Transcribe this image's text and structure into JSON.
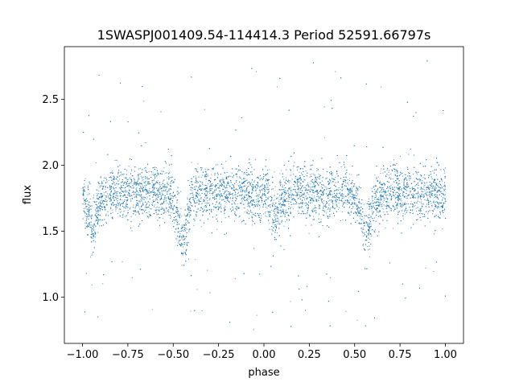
{
  "chart_data": {
    "type": "scatter",
    "title": "1SWASPJ001409.54-114414.3 Period 52591.66797s",
    "xlabel": "phase",
    "ylabel": "flux",
    "xlim": [
      -1.1,
      1.1
    ],
    "ylim": [
      0.65,
      2.9
    ],
    "x_ticks": [
      -1.0,
      -0.75,
      -0.5,
      -0.25,
      0.0,
      0.25,
      0.5,
      0.75,
      1.0
    ],
    "x_tick_labels": [
      "−1.00",
      "−0.75",
      "−0.50",
      "−0.25",
      "0.00",
      "0.25",
      "0.50",
      "0.75",
      "1.00"
    ],
    "y_ticks": [
      1.0,
      1.5,
      2.0,
      2.5
    ],
    "y_tick_labels": [
      "1.0",
      "1.5",
      "2.0",
      "2.5"
    ],
    "grid": false,
    "marker_color": "#1f77b4",
    "series": [
      {
        "profile": {
          "x": [
            -1.0,
            -0.98,
            -0.96,
            -0.95,
            -0.94,
            -0.92,
            -0.9,
            -0.85,
            -0.75,
            -0.6,
            -0.52,
            -0.48,
            -0.46,
            -0.45,
            -0.44,
            -0.42,
            -0.4,
            -0.35,
            -0.25,
            -0.05,
            0.02,
            0.05,
            0.06,
            0.07,
            0.1,
            0.15,
            0.25,
            0.45,
            0.52,
            0.55,
            0.56,
            0.57,
            0.6,
            0.65,
            0.75,
            1.0
          ],
          "y_median": [
            1.75,
            1.68,
            1.57,
            1.52,
            1.55,
            1.65,
            1.74,
            1.8,
            1.8,
            1.8,
            1.78,
            1.62,
            1.45,
            1.4,
            1.46,
            1.65,
            1.76,
            1.8,
            1.8,
            1.8,
            1.75,
            1.62,
            1.55,
            1.6,
            1.75,
            1.8,
            1.8,
            1.8,
            1.72,
            1.5,
            1.42,
            1.48,
            1.7,
            1.8,
            1.8,
            1.78
          ]
        },
        "typical_scatter": 0.1,
        "outlier_range": [
          0.75,
          2.8
        ]
      }
    ]
  }
}
